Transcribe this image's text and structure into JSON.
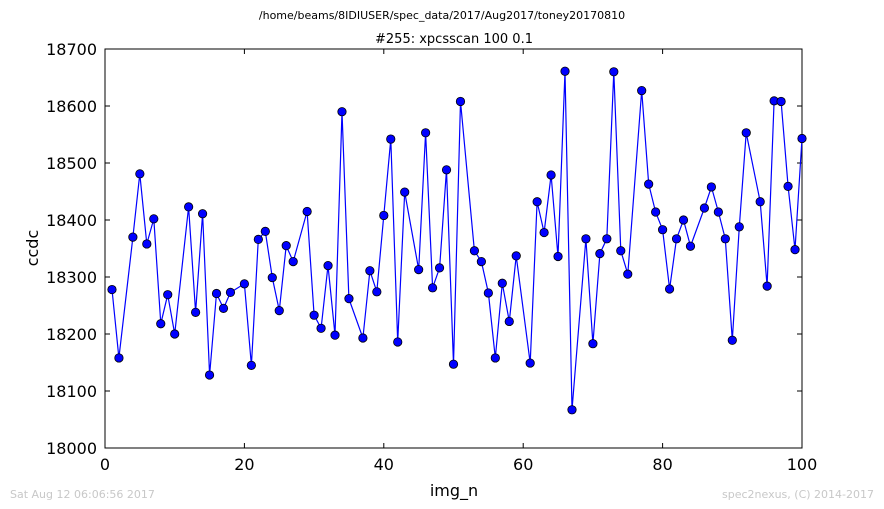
{
  "header": {
    "path": "/home/beams/8IDIUSER/spec_data/2017/Aug2017/toney20170810"
  },
  "footer": {
    "timestamp": "Sat Aug 12 06:06:56 2017",
    "credit": "spec2nexus, (C) 2014-2017"
  },
  "chart_data": {
    "type": "line",
    "title": "#255: xpcsscan 100 0.1",
    "xlabel": "img_n",
    "ylabel": "ccdc",
    "xlim": [
      0,
      100
    ],
    "ylim": [
      18000,
      18700
    ],
    "xticks": [
      0,
      20,
      40,
      60,
      80,
      100
    ],
    "yticks": [
      18000,
      18100,
      18200,
      18300,
      18400,
      18500,
      18600,
      18700
    ],
    "grid": false,
    "color": "#0000ff",
    "series": [
      {
        "x": [
          1,
          2,
          4,
          5,
          6,
          7,
          8,
          9,
          10,
          12,
          13,
          14,
          15,
          16,
          17,
          18,
          20,
          21,
          22,
          23,
          24,
          25,
          26,
          27,
          29,
          30,
          31,
          32,
          33,
          34,
          35,
          37,
          38,
          39,
          40,
          41,
          42,
          43,
          45,
          46,
          47,
          48,
          49,
          50,
          51,
          53,
          54,
          55,
          56,
          57,
          58,
          59,
          61,
          62,
          63,
          64,
          65,
          66,
          67,
          69,
          70,
          71,
          72,
          73,
          74,
          75,
          77,
          78,
          79,
          80,
          81,
          82,
          83,
          84,
          86,
          87,
          88,
          89,
          90,
          91,
          92,
          94,
          95,
          96,
          97,
          98,
          99,
          100
        ],
        "y": [
          18278,
          18158,
          18370,
          18481,
          18358,
          18402,
          18218,
          18269,
          18200,
          18423,
          18238,
          18411,
          18128,
          18271,
          18245,
          18273,
          18288,
          18145,
          18366,
          18380,
          18299,
          18241,
          18355,
          18327,
          18415,
          18233,
          18210,
          18320,
          18198,
          18590,
          18262,
          18193,
          18311,
          18274,
          18408,
          18542,
          18186,
          18449,
          18313,
          18553,
          18281,
          18316,
          18488,
          18147,
          18608,
          18346,
          18327,
          18272,
          18158,
          18289,
          18222,
          18337,
          18149,
          18432,
          18378,
          18479,
          18336,
          18661,
          18067,
          18367,
          18183,
          18341,
          18367,
          18660,
          18346,
          18305,
          18627,
          18463,
          18414,
          18383,
          18279,
          18367,
          18400,
          18354,
          18421,
          18458,
          18414,
          18367,
          18189,
          18388,
          18553,
          18432,
          18284,
          18609,
          18608,
          18459,
          18348,
          18543
        ]
      }
    ]
  }
}
